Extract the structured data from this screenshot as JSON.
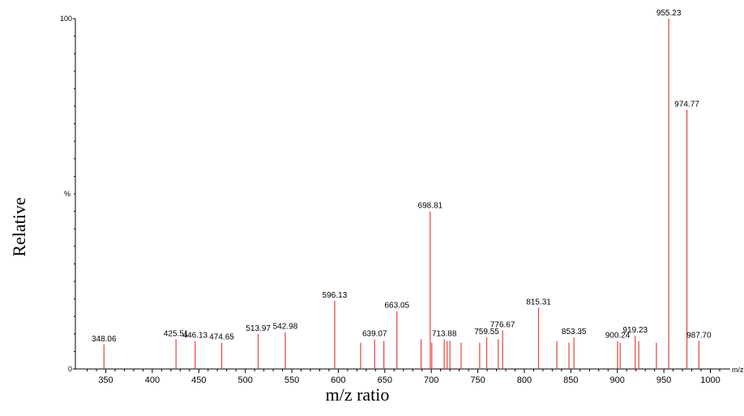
{
  "chart_data": {
    "type": "bar",
    "title": "",
    "xlabel": "m/z ratio",
    "ylabel": "Relative",
    "ylabel_inner": "%",
    "x_unit_label": "m/z",
    "xlim": [
      322,
      1012
    ],
    "ylim": [
      0,
      100
    ],
    "xticks": [
      350,
      400,
      450,
      500,
      550,
      600,
      650,
      700,
      750,
      800,
      850,
      900,
      950,
      1000
    ],
    "yticks": [
      0,
      100
    ],
    "grid": false,
    "colors": {
      "peak": "#e8413c",
      "axis": "#000000",
      "label": "#000000"
    },
    "peaks": [
      {
        "mz": 348.06,
        "intensity": 7,
        "label": "348.06"
      },
      {
        "mz": 425.51,
        "intensity": 8.5,
        "label": "425.51"
      },
      {
        "mz": 446.13,
        "intensity": 8,
        "label": "446.13"
      },
      {
        "mz": 474.65,
        "intensity": 7.5,
        "label": "474.65"
      },
      {
        "mz": 513.97,
        "intensity": 10,
        "label": "513.97"
      },
      {
        "mz": 542.98,
        "intensity": 10.5,
        "label": "542.98"
      },
      {
        "mz": 596.13,
        "intensity": 19.5,
        "label": "596.13"
      },
      {
        "mz": 624.0,
        "intensity": 7.5,
        "label": ""
      },
      {
        "mz": 639.07,
        "intensity": 8.5,
        "label": "639.07"
      },
      {
        "mz": 649.0,
        "intensity": 8,
        "label": ""
      },
      {
        "mz": 663.05,
        "intensity": 16.5,
        "label": "663.05"
      },
      {
        "mz": 689.0,
        "intensity": 8.5,
        "label": ""
      },
      {
        "mz": 698.81,
        "intensity": 45,
        "label": "698.81"
      },
      {
        "mz": 700.5,
        "intensity": 7.5,
        "label": ""
      },
      {
        "mz": 713.88,
        "intensity": 8.5,
        "label": "713.88"
      },
      {
        "mz": 717.0,
        "intensity": 8,
        "label": ""
      },
      {
        "mz": 720.0,
        "intensity": 8,
        "label": ""
      },
      {
        "mz": 732.0,
        "intensity": 7.5,
        "label": ""
      },
      {
        "mz": 752.0,
        "intensity": 7.5,
        "label": ""
      },
      {
        "mz": 759.55,
        "intensity": 9,
        "label": "759.55"
      },
      {
        "mz": 772.0,
        "intensity": 8.5,
        "label": ""
      },
      {
        "mz": 776.67,
        "intensity": 11,
        "label": "776.67"
      },
      {
        "mz": 815.31,
        "intensity": 17.5,
        "label": "815.31"
      },
      {
        "mz": 835.0,
        "intensity": 8,
        "label": ""
      },
      {
        "mz": 848.0,
        "intensity": 7.5,
        "label": ""
      },
      {
        "mz": 853.35,
        "intensity": 9,
        "label": "853.35"
      },
      {
        "mz": 900.24,
        "intensity": 8,
        "label": "900.24"
      },
      {
        "mz": 903.0,
        "intensity": 7.5,
        "label": ""
      },
      {
        "mz": 919.23,
        "intensity": 9.5,
        "label": "919.23"
      },
      {
        "mz": 923.0,
        "intensity": 8,
        "label": ""
      },
      {
        "mz": 942.0,
        "intensity": 7.5,
        "label": ""
      },
      {
        "mz": 955.23,
        "intensity": 100,
        "label": "955.23"
      },
      {
        "mz": 974.77,
        "intensity": 74,
        "label": "974.77"
      },
      {
        "mz": 987.7,
        "intensity": 8,
        "label": "987.70"
      }
    ]
  }
}
